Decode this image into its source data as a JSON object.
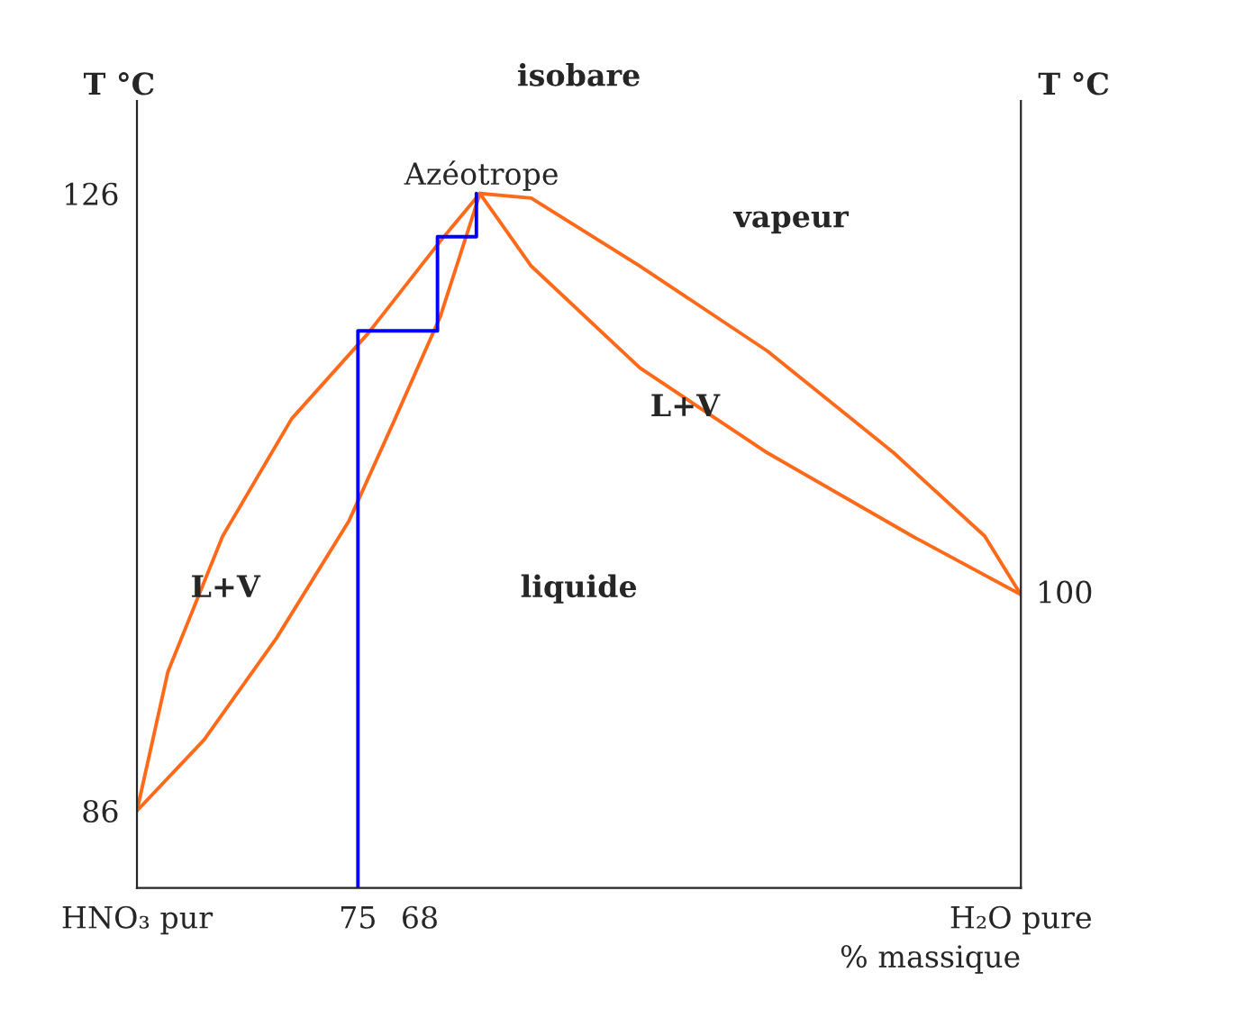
{
  "chart_data": {
    "type": "line",
    "title": "isobare",
    "xlabel": "% massique",
    "ylabel": "T °C",
    "y2label": "T °C",
    "series": [
      {
        "color": "#ff6a1a",
        "x": [
          100,
          96.5,
          90.3,
          82.5,
          73.9,
          65.7,
          61.2
        ],
        "values": [
          86,
          95.0,
          103.8,
          111.4,
          116.9,
          122.9,
          126
        ]
      },
      {
        "color": "#ff6a1a",
        "x": [
          100,
          92.4,
          84.2,
          76.0,
          70.8,
          65.7,
          62.6,
          61.2
        ],
        "values": [
          86,
          90.6,
          97.2,
          104.8,
          111.4,
          118.0,
          123.5,
          126
        ]
      },
      {
        "color": "#ff6a1a",
        "x": [
          61.2,
          55.4,
          43.1,
          28.7,
          14.4,
          4.1,
          0
        ],
        "values": [
          126,
          125.7,
          121.3,
          115.8,
          109.2,
          103.8,
          100
        ]
      },
      {
        "color": "#ff6a1a",
        "x": [
          61.2,
          55.4,
          43.1,
          28.7,
          12.3,
          0
        ],
        "values": [
          126,
          121.3,
          114.7,
          109.2,
          103.8,
          100
        ]
      },
      {
        "color": "#0000ff",
        "x": [
          75,
          75,
          66,
          66,
          61.6,
          61.6
        ],
        "values": [
          81,
          117.1,
          117.1,
          123.2,
          123.2,
          126
        ]
      }
    ],
    "xlim": [
      100,
      0
    ],
    "xticks": [
      {
        "value": 100,
        "label": "HNO₃ pur"
      },
      75,
      68,
      {
        "value": 0,
        "label": "H₂O pure"
      }
    ],
    "ylim": [
      81,
      132
    ],
    "yticks": [
      86,
      126
    ],
    "marker": "none",
    "line_style": "solid",
    "grid": false,
    "legend": false,
    "annotations": [
      "Azéotrope",
      "vapeur",
      "L+V",
      "L+V",
      "liquide",
      {
        "text": "100",
        "x": 0,
        "y": 100
      }
    ]
  }
}
